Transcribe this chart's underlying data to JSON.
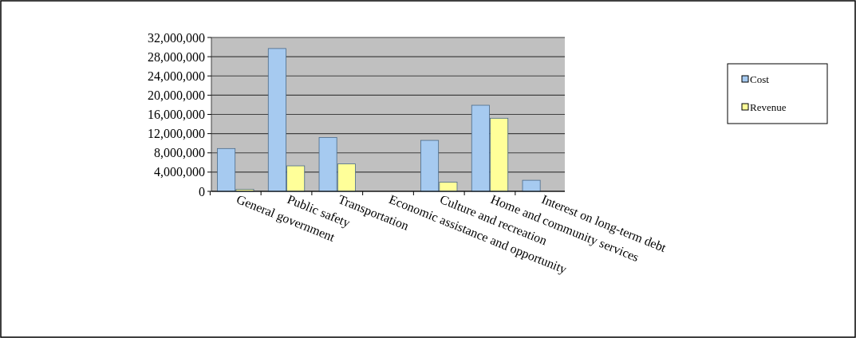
{
  "chart_data": {
    "type": "bar",
    "categories": [
      "General government",
      "Public safety",
      "Transportation",
      "Economic assistance and opportunity",
      "Culture and recreation",
      "Home and community services",
      "Interest on long-term debt"
    ],
    "series": [
      {
        "name": "Cost",
        "color": "#a6caf0",
        "values": [
          8900000,
          29700000,
          11200000,
          null,
          10600000,
          17900000,
          2300000
        ]
      },
      {
        "name": "Revenue",
        "color": "#ffff99",
        "values": [
          400000,
          5300000,
          5700000,
          0,
          1900000,
          15200000,
          0
        ]
      }
    ],
    "ylim": [
      0,
      32000000
    ],
    "yticks": [
      {
        "value": 0,
        "label": "0"
      },
      {
        "value": 4000000,
        "label": "4,000,000"
      },
      {
        "value": 8000000,
        "label": "8,000,000"
      },
      {
        "value": 12000000,
        "label": "12,000,000"
      },
      {
        "value": 16000000,
        "label": "16,000,000"
      },
      {
        "value": 20000000,
        "label": "20,000,000"
      },
      {
        "value": 24000000,
        "label": "24,000,000"
      },
      {
        "value": 28000000,
        "label": "28,000,000"
      },
      {
        "value": 32000000,
        "label": "32,000,000"
      }
    ],
    "grid": "y",
    "legend": "right"
  }
}
